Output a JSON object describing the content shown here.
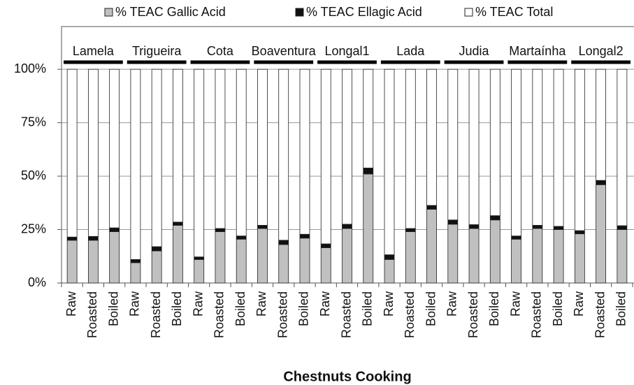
{
  "chart_data": {
    "type": "stacked_bar",
    "x_label": "Chestnuts Cooking",
    "groups": [
      "Lamela",
      "Trigueira",
      "Cota",
      "Boaventura",
      "Longal1",
      "Lada",
      "Judia",
      "Martaínha",
      "Longal2"
    ],
    "categories": [
      "Raw",
      "Roasted",
      "Boiled",
      "Raw",
      "Roasted",
      "Boiled",
      "Raw",
      "Roasted",
      "Boiled",
      "Raw",
      "Roasted",
      "Boiled",
      "Raw",
      "Roasted",
      "Boiled",
      "Raw",
      "Roasted",
      "Boiled",
      "Raw",
      "Roasted",
      "Boiled",
      "Raw",
      "Roasted",
      "Boiled",
      "Raw",
      "Roasted",
      "Boiled"
    ],
    "series": [
      {
        "name": "% TEAC Gallic Acid",
        "color": "#c0c0c0",
        "values": [
          20,
          20,
          24,
          9.5,
          15,
          27,
          11,
          24,
          20.5,
          25.5,
          18,
          21,
          16.5,
          25.5,
          51,
          11,
          24,
          34.5,
          27.5,
          25.5,
          29.5,
          20.5,
          25.5,
          25,
          23,
          46,
          25
        ]
      },
      {
        "name": "% TEAC Ellagic Acid",
        "color": "#111111",
        "values": [
          1.5,
          1.8,
          1.8,
          1.5,
          2,
          1.5,
          1.2,
          1.5,
          1.5,
          1.5,
          2,
          1.8,
          1.8,
          2,
          2.8,
          2.2,
          1.5,
          1.8,
          2,
          1.8,
          2,
          1.5,
          1.5,
          1.5,
          1.5,
          2,
          1.8
        ]
      },
      {
        "name": "% TEAC Total",
        "color": "#ffffff",
        "values": [
          78.5,
          78.2,
          74.2,
          89,
          83,
          71.5,
          87.8,
          74.5,
          78,
          73,
          80,
          77.2,
          81.7,
          72.5,
          46.2,
          86.8,
          74.5,
          63.7,
          70.5,
          72.7,
          68.5,
          78,
          73,
          73.5,
          75.5,
          52,
          73.2
        ]
      }
    ],
    "ylim": [
      0,
      120
    ],
    "yticks": [
      {
        "value": 0,
        "label": "0%"
      },
      {
        "value": 25,
        "label": "25%"
      },
      {
        "value": 50,
        "label": "50%"
      },
      {
        "value": 75,
        "label": "75%"
      },
      {
        "value": 100,
        "label": "100%"
      }
    ],
    "grid": true
  }
}
